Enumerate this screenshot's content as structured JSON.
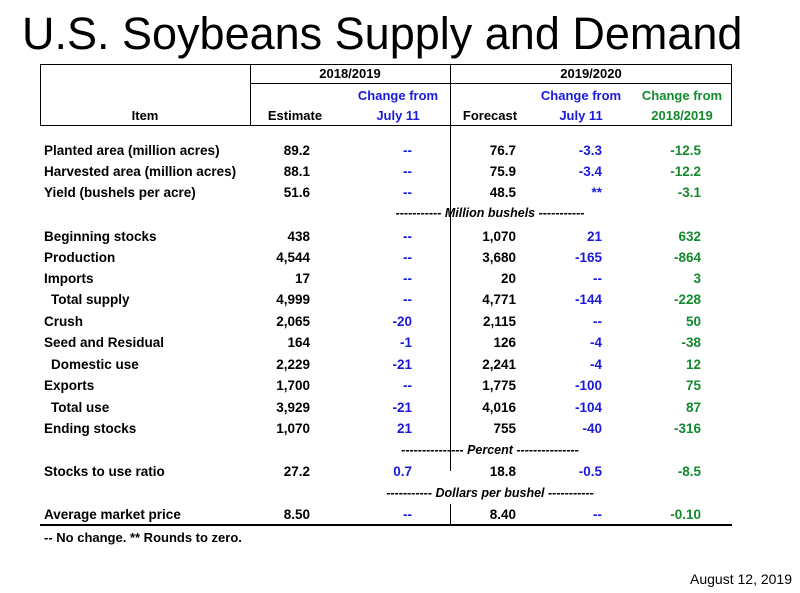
{
  "title": "U.S. Soybeans Supply and Demand",
  "header": {
    "group1": "2018/2019",
    "group2": "2019/2020",
    "item": "Item",
    "estimate": "Estimate",
    "change_from_1": "Change from",
    "july11_1": "July 11",
    "forecast": "Forecast",
    "change_from_2": "Change from",
    "july11_2": "July 11",
    "change_from_3": "Change from",
    "prior_year": "2018/2019"
  },
  "rows": [
    {
      "label": "Planted area (million acres)",
      "est": "89.2",
      "chg1": "--",
      "fc": "76.7",
      "chg2": "-3.3",
      "chg3": "-12.5"
    },
    {
      "label": "Harvested area (million acres)",
      "est": "88.1",
      "chg1": "--",
      "fc": "75.9",
      "chg2": "-3.4",
      "chg3": "-12.2"
    },
    {
      "label": "Yield (bushels per acre)",
      "est": "51.6",
      "chg1": "--",
      "fc": "48.5",
      "chg2": "**",
      "chg3": "-3.1"
    },
    {
      "label": "Beginning stocks",
      "est": "438",
      "chg1": "--",
      "fc": "1,070",
      "chg2": "21",
      "chg3": "632"
    },
    {
      "label": "Production",
      "est": "4,544",
      "chg1": "--",
      "fc": "3,680",
      "chg2": "-165",
      "chg3": "-864"
    },
    {
      "label": "Imports",
      "est": "17",
      "chg1": "--",
      "fc": "20",
      "chg2": "--",
      "chg3": "3"
    },
    {
      "label": "Total supply",
      "est": "4,999",
      "chg1": "--",
      "fc": "4,771",
      "chg2": "-144",
      "chg3": "-228"
    },
    {
      "label": "Crush",
      "est": "2,065",
      "chg1": "-20",
      "fc": "2,115",
      "chg2": "--",
      "chg3": "50"
    },
    {
      "label": "Seed and Residual",
      "est": "164",
      "chg1": "-1",
      "fc": "126",
      "chg2": "-4",
      "chg3": "-38"
    },
    {
      "label": "Domestic use",
      "est": "2,229",
      "chg1": "-21",
      "fc": "2,241",
      "chg2": "-4",
      "chg3": "12"
    },
    {
      "label": "Exports",
      "est": "1,700",
      "chg1": "--",
      "fc": "1,775",
      "chg2": "-100",
      "chg3": "75"
    },
    {
      "label": "Total use",
      "est": "3,929",
      "chg1": "-21",
      "fc": "4,016",
      "chg2": "-104",
      "chg3": "87"
    },
    {
      "label": "Ending stocks",
      "est": "1,070",
      "chg1": "21",
      "fc": "755",
      "chg2": "-40",
      "chg3": "-316"
    },
    {
      "label": "Stocks to use ratio",
      "est": "27.2",
      "chg1": "0.7",
      "fc": "18.8",
      "chg2": "-0.5",
      "chg3": "-8.5"
    },
    {
      "label": "Average market price",
      "est": "8.50",
      "chg1": "--",
      "fc": "8.40",
      "chg2": "--",
      "chg3": "-0.10"
    }
  ],
  "dividers": {
    "million_bushels": "----------- Million bushels -----------",
    "percent": "--------------- Percent ---------------",
    "dollars": "----------- Dollars per bushel -----------"
  },
  "footnote": "-- No change. ** Rounds to zero.",
  "date": "August 12, 2019",
  "colors": {
    "change_july": "#1a1adc",
    "change_prior_year": "#138a2e"
  }
}
